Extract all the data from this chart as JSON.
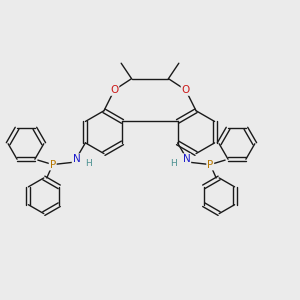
{
  "background_color": "#ebebeb",
  "bond_color": "#1a1a1a",
  "N_color": "#1a1acc",
  "H_color": "#4a9090",
  "P_color": "#b87800",
  "O_color": "#cc1a1a",
  "figsize": [
    3.0,
    3.0
  ],
  "dpi": 100,
  "xlim": [
    0,
    10
  ],
  "ylim": [
    0,
    10
  ]
}
